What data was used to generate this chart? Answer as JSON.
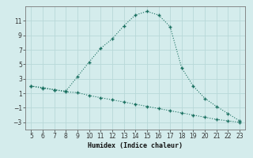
{
  "xlabel": "Humidex (Indice chaleur)",
  "x_line1": [
    5,
    6,
    7,
    8,
    9,
    10,
    11,
    12,
    13,
    14,
    15,
    16,
    17,
    18,
    19,
    20,
    21,
    22,
    23
  ],
  "y_line1": [
    2.0,
    1.8,
    1.5,
    1.3,
    3.3,
    5.3,
    7.2,
    8.5,
    10.3,
    11.8,
    12.3,
    11.8,
    10.2,
    4.5,
    2.0,
    0.3,
    -0.8,
    -1.8,
    -2.8
  ],
  "x_line2": [
    5,
    6,
    7,
    8,
    9,
    10,
    11,
    12,
    13,
    14,
    15,
    16,
    17,
    18,
    19,
    20,
    21,
    22,
    23
  ],
  "y_line2": [
    2.0,
    1.7,
    1.5,
    1.2,
    1.1,
    0.7,
    0.4,
    0.1,
    -0.2,
    -0.5,
    -0.8,
    -1.1,
    -1.4,
    -1.7,
    -2.0,
    -2.3,
    -2.6,
    -2.8,
    -3.0
  ],
  "line_color": "#1a7060",
  "bg_color": "#d4ecec",
  "grid_color": "#b8d8d8",
  "xlim": [
    4.5,
    23.5
  ],
  "ylim": [
    -4,
    13
  ],
  "yticks": [
    -3,
    -1,
    1,
    3,
    5,
    7,
    9,
    11
  ],
  "xticks": [
    5,
    6,
    7,
    8,
    9,
    10,
    11,
    12,
    13,
    14,
    15,
    16,
    17,
    18,
    19,
    20,
    21,
    22,
    23
  ]
}
